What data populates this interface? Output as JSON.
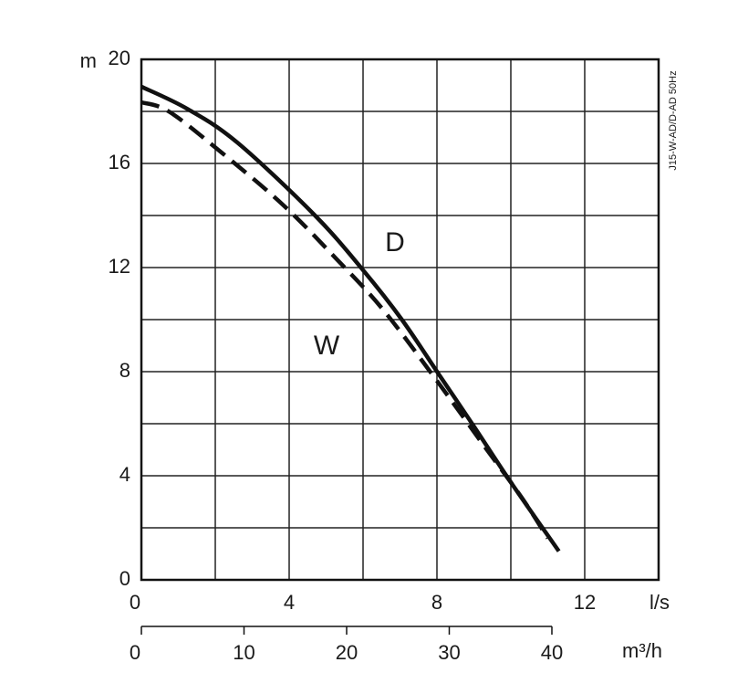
{
  "chart_data": {
    "type": "line",
    "y_label": "m",
    "x_label": "l/s",
    "x2_label": "m³/h",
    "side_note": "J15-W-AD/D-AD 50Hz",
    "xlim": [
      0,
      14
    ],
    "xticks": [
      0,
      4,
      8,
      12
    ],
    "xminor": [
      2,
      6,
      10
    ],
    "ylim": [
      0,
      20
    ],
    "yticks": [
      0,
      4,
      8,
      12,
      16,
      20
    ],
    "yminor": [
      2,
      6,
      10,
      14,
      18
    ],
    "x2lim": [
      0,
      50.4
    ],
    "x2ticks": [
      0,
      10,
      20,
      30,
      40
    ],
    "grid": true,
    "series": [
      {
        "name": "D",
        "color": "#111111",
        "dash": false,
        "x": [
          0,
          1.24,
          2.6,
          4.7,
          6.0,
          7.05,
          8.05,
          9.0,
          10.0,
          11.3
        ],
        "values": [
          18.95,
          18.1,
          16.8,
          14.0,
          11.9,
          10.0,
          7.9,
          5.9,
          3.75,
          1.1
        ]
      },
      {
        "name": "W",
        "color": "#111111",
        "dash": true,
        "x": [
          0,
          0.74,
          2.1,
          3.84,
          5.3,
          6.56,
          8.05,
          9.3,
          10.3,
          11.0
        ],
        "values": [
          18.35,
          18.0,
          16.5,
          14.4,
          12.3,
          10.35,
          7.55,
          5.1,
          3.15,
          1.6
        ]
      }
    ]
  }
}
